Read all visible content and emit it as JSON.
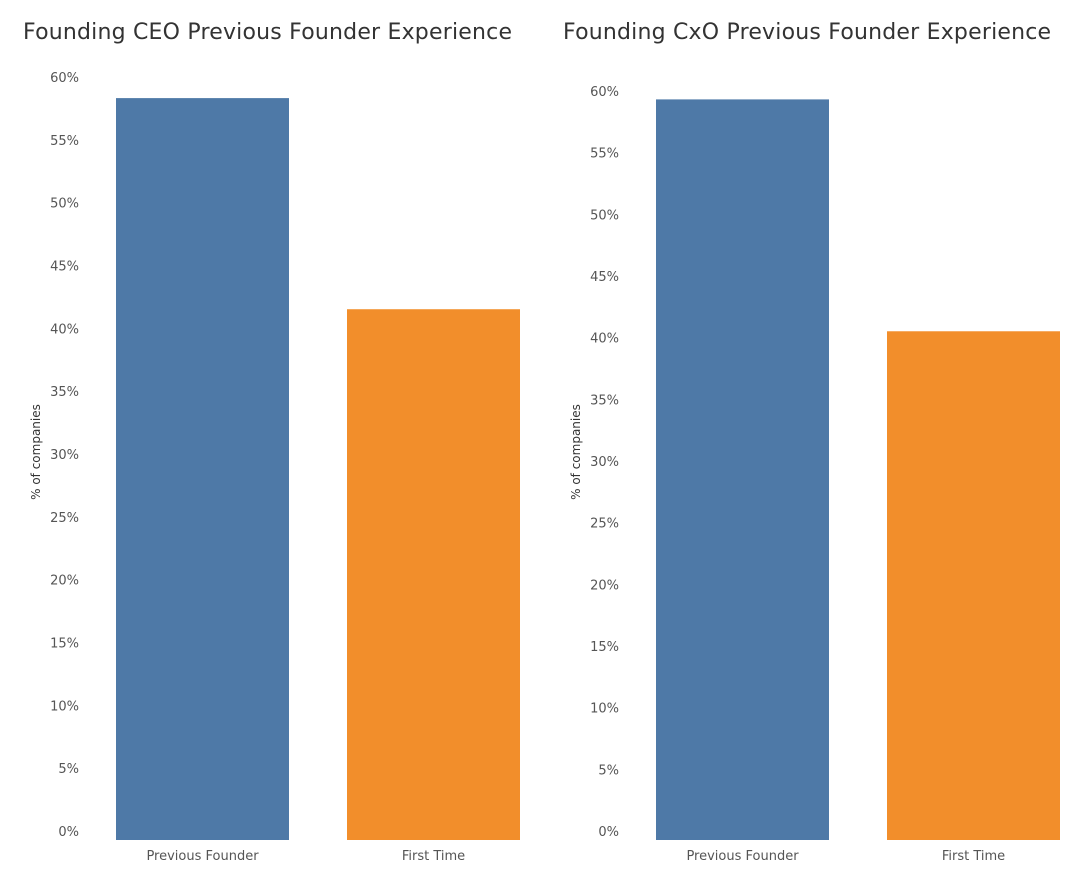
{
  "chart_data": [
    {
      "type": "bar",
      "title": "Founding CEO Previous Founder Experience",
      "xlabel": "",
      "ylabel": "% of companies",
      "categories": [
        "Previous Founder",
        "First Time"
      ],
      "values": [
        58.4,
        41.6
      ],
      "colors": [
        "#4e79a7",
        "#f28e2b"
      ],
      "ylim": [
        0,
        60
      ],
      "yticks": [
        0,
        5,
        10,
        15,
        20,
        25,
        30,
        35,
        40,
        45,
        50,
        55,
        60
      ],
      "ytick_labels": [
        "0%",
        "5%",
        "10%",
        "15%",
        "20%",
        "25%",
        "30%",
        "35%",
        "40%",
        "45%",
        "50%",
        "55%",
        "60%"
      ],
      "grid": false
    },
    {
      "type": "bar",
      "title": "Founding CxO Previous Founder Experience",
      "xlabel": "",
      "ylabel": "% of companies",
      "categories": [
        "Previous Founder",
        "First Time"
      ],
      "values": [
        59.4,
        40.6
      ],
      "colors": [
        "#4e79a7",
        "#f28e2b"
      ],
      "ylim": [
        0,
        60
      ],
      "yticks": [
        0,
        5,
        10,
        15,
        20,
        25,
        30,
        35,
        40,
        45,
        50,
        55,
        60
      ],
      "ytick_labels": [
        "0%",
        "5%",
        "10%",
        "15%",
        "20%",
        "25%",
        "30%",
        "35%",
        "40%",
        "45%",
        "50%",
        "55%",
        "60%"
      ],
      "grid": false
    }
  ]
}
